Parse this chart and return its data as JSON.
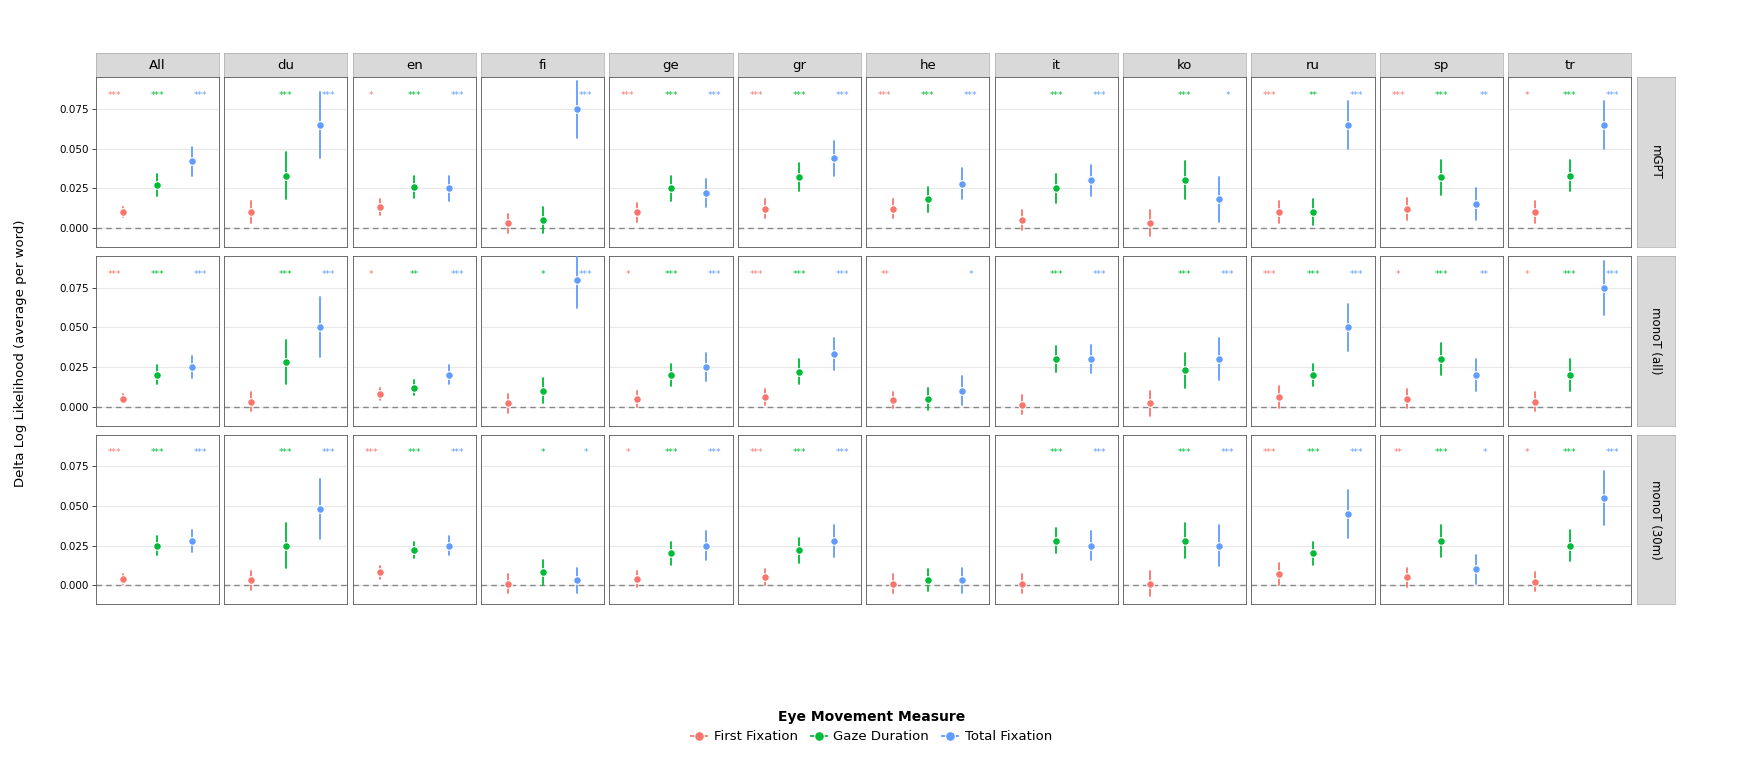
{
  "row_labels": [
    "mGPT",
    "monoT (all)",
    "monoT (30m)"
  ],
  "col_labels": [
    "All",
    "du",
    "en",
    "fi",
    "ge",
    "gr",
    "he",
    "it",
    "ko",
    "ru",
    "sp",
    "tr"
  ],
  "colors": {
    "red": "#F8766D",
    "green": "#00BA38",
    "blue": "#619CFF"
  },
  "point_data": {
    "mGPT": {
      "All": {
        "red": [
          0.01,
          0.007,
          0.013
        ],
        "green": [
          0.027,
          0.02,
          0.034
        ],
        "blue": [
          0.042,
          0.033,
          0.051
        ]
      },
      "du": {
        "red": [
          0.01,
          0.003,
          0.017
        ],
        "green": [
          0.033,
          0.018,
          0.048
        ],
        "blue": [
          0.065,
          0.044,
          0.086
        ]
      },
      "en": {
        "red": [
          0.013,
          0.008,
          0.018
        ],
        "green": [
          0.026,
          0.019,
          0.033
        ],
        "blue": [
          0.025,
          0.017,
          0.033
        ]
      },
      "fi": {
        "red": [
          0.003,
          -0.003,
          0.009
        ],
        "green": [
          0.005,
          -0.003,
          0.013
        ],
        "blue": [
          0.075,
          0.057,
          0.093
        ]
      },
      "ge": {
        "red": [
          0.01,
          0.004,
          0.016
        ],
        "green": [
          0.025,
          0.017,
          0.033
        ],
        "blue": [
          0.022,
          0.013,
          0.031
        ]
      },
      "gr": {
        "red": [
          0.012,
          0.006,
          0.018
        ],
        "green": [
          0.032,
          0.023,
          0.041
        ],
        "blue": [
          0.044,
          0.033,
          0.055
        ]
      },
      "he": {
        "red": [
          0.012,
          0.006,
          0.018
        ],
        "green": [
          0.018,
          0.01,
          0.026
        ],
        "blue": [
          0.028,
          0.018,
          0.038
        ]
      },
      "it": {
        "red": [
          0.005,
          -0.001,
          0.011
        ],
        "green": [
          0.025,
          0.016,
          0.034
        ],
        "blue": [
          0.03,
          0.02,
          0.04
        ]
      },
      "ko": {
        "red": [
          0.003,
          -0.005,
          0.011
        ],
        "green": [
          0.03,
          0.018,
          0.042
        ],
        "blue": [
          0.018,
          0.004,
          0.032
        ]
      },
      "ru": {
        "red": [
          0.01,
          0.003,
          0.017
        ],
        "green": [
          0.01,
          0.002,
          0.018
        ],
        "blue": [
          0.065,
          0.05,
          0.08
        ]
      },
      "sp": {
        "red": [
          0.012,
          0.005,
          0.019
        ],
        "green": [
          0.032,
          0.021,
          0.043
        ],
        "blue": [
          0.015,
          0.005,
          0.025
        ]
      },
      "tr": {
        "red": [
          0.01,
          0.003,
          0.017
        ],
        "green": [
          0.033,
          0.023,
          0.043
        ],
        "blue": [
          0.065,
          0.05,
          0.08
        ]
      }
    },
    "monoT (all)": {
      "All": {
        "red": [
          0.005,
          0.002,
          0.008
        ],
        "green": [
          0.02,
          0.014,
          0.026
        ],
        "blue": [
          0.025,
          0.018,
          0.032
        ]
      },
      "du": {
        "red": [
          0.003,
          -0.003,
          0.009
        ],
        "green": [
          0.028,
          0.014,
          0.042
        ],
        "blue": [
          0.05,
          0.031,
          0.069
        ]
      },
      "en": {
        "red": [
          0.008,
          0.004,
          0.012
        ],
        "green": [
          0.012,
          0.007,
          0.017
        ],
        "blue": [
          0.02,
          0.014,
          0.026
        ]
      },
      "fi": {
        "red": [
          0.002,
          -0.004,
          0.008
        ],
        "green": [
          0.01,
          0.002,
          0.018
        ],
        "blue": [
          0.08,
          0.062,
          0.098
        ]
      },
      "ge": {
        "red": [
          0.005,
          0.0,
          0.01
        ],
        "green": [
          0.02,
          0.013,
          0.027
        ],
        "blue": [
          0.025,
          0.016,
          0.034
        ]
      },
      "gr": {
        "red": [
          0.006,
          0.001,
          0.011
        ],
        "green": [
          0.022,
          0.014,
          0.03
        ],
        "blue": [
          0.033,
          0.023,
          0.043
        ]
      },
      "he": {
        "red": [
          0.004,
          -0.001,
          0.009
        ],
        "green": [
          0.005,
          -0.002,
          0.012
        ],
        "blue": [
          0.01,
          0.001,
          0.019
        ]
      },
      "it": {
        "red": [
          0.001,
          -0.005,
          0.007
        ],
        "green": [
          0.03,
          0.022,
          0.038
        ],
        "blue": [
          0.03,
          0.021,
          0.039
        ]
      },
      "ko": {
        "red": [
          0.002,
          -0.006,
          0.01
        ],
        "green": [
          0.023,
          0.012,
          0.034
        ],
        "blue": [
          0.03,
          0.017,
          0.043
        ]
      },
      "ru": {
        "red": [
          0.006,
          -0.001,
          0.013
        ],
        "green": [
          0.02,
          0.013,
          0.027
        ],
        "blue": [
          0.05,
          0.035,
          0.065
        ]
      },
      "sp": {
        "red": [
          0.005,
          -0.001,
          0.011
        ],
        "green": [
          0.03,
          0.02,
          0.04
        ],
        "blue": [
          0.02,
          0.01,
          0.03
        ]
      },
      "tr": {
        "red": [
          0.003,
          -0.003,
          0.009
        ],
        "green": [
          0.02,
          0.01,
          0.03
        ],
        "blue": [
          0.075,
          0.058,
          0.092
        ]
      }
    },
    "monoT (30m)": {
      "All": {
        "red": [
          0.004,
          0.001,
          0.007
        ],
        "green": [
          0.025,
          0.019,
          0.031
        ],
        "blue": [
          0.028,
          0.021,
          0.035
        ]
      },
      "du": {
        "red": [
          0.003,
          -0.003,
          0.009
        ],
        "green": [
          0.025,
          0.011,
          0.039
        ],
        "blue": [
          0.048,
          0.029,
          0.067
        ]
      },
      "en": {
        "red": [
          0.008,
          0.004,
          0.012
        ],
        "green": [
          0.022,
          0.017,
          0.027
        ],
        "blue": [
          0.025,
          0.019,
          0.031
        ]
      },
      "fi": {
        "red": [
          0.001,
          -0.005,
          0.007
        ],
        "green": [
          0.008,
          0.0,
          0.016
        ],
        "blue": [
          0.003,
          -0.005,
          0.011
        ]
      },
      "ge": {
        "red": [
          0.004,
          -0.001,
          0.009
        ],
        "green": [
          0.02,
          0.013,
          0.027
        ],
        "blue": [
          0.025,
          0.016,
          0.034
        ]
      },
      "gr": {
        "red": [
          0.005,
          0.0,
          0.01
        ],
        "green": [
          0.022,
          0.014,
          0.03
        ],
        "blue": [
          0.028,
          0.018,
          0.038
        ]
      },
      "he": {
        "red": [
          0.001,
          -0.005,
          0.007
        ],
        "green": [
          0.003,
          -0.004,
          0.01
        ],
        "blue": [
          0.003,
          -0.005,
          0.011
        ]
      },
      "it": {
        "red": [
          0.001,
          -0.005,
          0.007
        ],
        "green": [
          0.028,
          0.02,
          0.036
        ],
        "blue": [
          0.025,
          0.016,
          0.034
        ]
      },
      "ko": {
        "red": [
          0.001,
          -0.007,
          0.009
        ],
        "green": [
          0.028,
          0.017,
          0.039
        ],
        "blue": [
          0.025,
          0.012,
          0.038
        ]
      },
      "ru": {
        "red": [
          0.007,
          0.0,
          0.014
        ],
        "green": [
          0.02,
          0.013,
          0.027
        ],
        "blue": [
          0.045,
          0.03,
          0.06
        ]
      },
      "sp": {
        "red": [
          0.005,
          -0.001,
          0.011
        ],
        "green": [
          0.028,
          0.018,
          0.038
        ],
        "blue": [
          0.01,
          0.001,
          0.019
        ]
      },
      "tr": {
        "red": [
          0.002,
          -0.004,
          0.008
        ],
        "green": [
          0.025,
          0.015,
          0.035
        ],
        "blue": [
          0.055,
          0.038,
          0.072
        ]
      }
    }
  },
  "stars": {
    "mGPT": {
      "All": {
        "red": "***",
        "green": "***",
        "blue": "***"
      },
      "du": {
        "red": "",
        "green": "***",
        "blue": "***"
      },
      "en": {
        "red": "*",
        "green": "***",
        "blue": "***"
      },
      "fi": {
        "red": "",
        "green": "",
        "blue": "***"
      },
      "ge": {
        "red": "***",
        "green": "***",
        "blue": "***"
      },
      "gr": {
        "red": "***",
        "green": "***",
        "blue": "***"
      },
      "he": {
        "red": "***",
        "green": "***",
        "blue": "***"
      },
      "it": {
        "red": "",
        "green": "***",
        "blue": "***"
      },
      "ko": {
        "red": "",
        "green": "***",
        "blue": "*"
      },
      "ru": {
        "red": "***",
        "green": "**",
        "blue": "***"
      },
      "sp": {
        "red": "***",
        "green": "***",
        "blue": "**"
      },
      "tr": {
        "red": "*",
        "green": "***",
        "blue": "***"
      }
    },
    "monoT (all)": {
      "All": {
        "red": "***",
        "green": "***",
        "blue": "***"
      },
      "du": {
        "red": "",
        "green": "***",
        "blue": "***"
      },
      "en": {
        "red": "*",
        "green": "**",
        "blue": "***"
      },
      "fi": {
        "red": "",
        "green": "*",
        "blue": "***"
      },
      "ge": {
        "red": "*",
        "green": "***",
        "blue": "***"
      },
      "gr": {
        "red": "***",
        "green": "***",
        "blue": "***"
      },
      "he": {
        "red": "**",
        "green": "",
        "blue": "*"
      },
      "it": {
        "red": "",
        "green": "***",
        "blue": "***"
      },
      "ko": {
        "red": "",
        "green": "***",
        "blue": "***"
      },
      "ru": {
        "red": "***",
        "green": "***",
        "blue": "***"
      },
      "sp": {
        "red": "*",
        "green": "***",
        "blue": "**"
      },
      "tr": {
        "red": "*",
        "green": "***",
        "blue": "***"
      }
    },
    "monoT (30m)": {
      "All": {
        "red": "***",
        "green": "***",
        "blue": "***"
      },
      "du": {
        "red": "",
        "green": "***",
        "blue": "***"
      },
      "en": {
        "red": "***",
        "green": "***",
        "blue": "***"
      },
      "fi": {
        "red": "",
        "green": "*",
        "blue": "*"
      },
      "ge": {
        "red": "*",
        "green": "***",
        "blue": "***"
      },
      "gr": {
        "red": "***",
        "green": "***",
        "blue": "***"
      },
      "he": {
        "red": "",
        "green": "",
        "blue": ""
      },
      "it": {
        "red": "",
        "green": "***",
        "blue": "***"
      },
      "ko": {
        "red": "",
        "green": "***",
        "blue": "***"
      },
      "ru": {
        "red": "***",
        "green": "***",
        "blue": "***"
      },
      "sp": {
        "red": "**",
        "green": "***",
        "blue": "*"
      },
      "tr": {
        "red": "*",
        "green": "***",
        "blue": "***"
      }
    }
  },
  "ylim": [
    -0.012,
    0.095
  ],
  "yticks": [
    0.0,
    0.025,
    0.05,
    0.075
  ],
  "ytick_labels": [
    "0.000",
    "0.025",
    "0.050",
    "0.075"
  ],
  "ylabel": "Delta Log Likelihood (average per word)",
  "panel_bg": "#FFFFFF",
  "strip_bg": "#D9D9D9",
  "grid_color": "#E8E8E8",
  "outer_bg": "#EBEBEB"
}
